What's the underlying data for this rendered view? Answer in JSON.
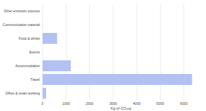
{
  "chart_data": {
    "type": "bar",
    "orientation": "horizontal",
    "x_label": "Kg of CO₂ₑq",
    "categories": [
      "Other emission sources",
      "Communication material",
      "Food & drinks",
      "Events",
      "Accommodation",
      "Travel",
      "Office & smart working"
    ],
    "values": [
      0,
      5,
      620,
      0,
      1200,
      6350,
      150
    ],
    "color": "#b3c1f2",
    "xlim": [
      0,
      6650
    ],
    "xticks": [
      0,
      1000,
      2000,
      3000,
      4000,
      5000,
      6000
    ],
    "grid": true
  }
}
